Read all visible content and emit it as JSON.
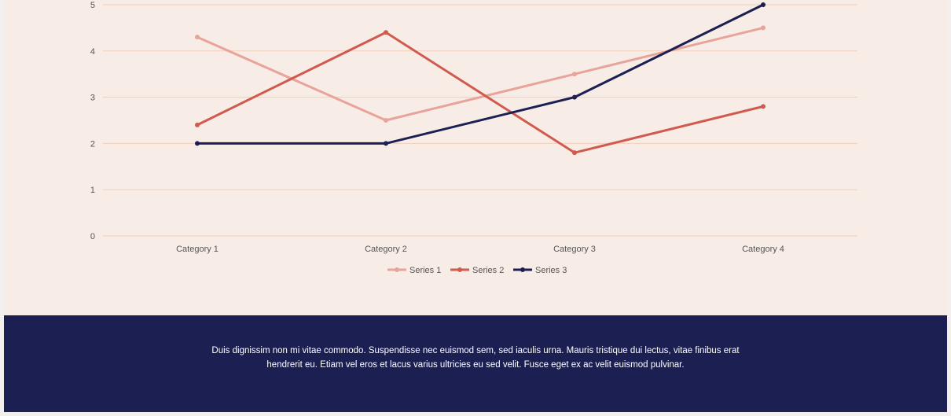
{
  "chart_data": {
    "type": "line",
    "categories": [
      "Category 1",
      "Category 2",
      "Category 3",
      "Category 4"
    ],
    "series": [
      {
        "name": "Series 1",
        "values": [
          4.3,
          2.5,
          3.5,
          4.5
        ],
        "color": "#e8a39a"
      },
      {
        "name": "Series 2",
        "values": [
          2.4,
          4.4,
          1.8,
          2.8
        ],
        "color": "#d05a4e"
      },
      {
        "name": "Series 3",
        "values": [
          2.0,
          2.0,
          3.0,
          5.0
        ],
        "color": "#1c1f52"
      }
    ],
    "yticks": [
      "0",
      "1",
      "2",
      "3",
      "4",
      "5"
    ],
    "ylim": [
      0,
      5
    ],
    "grid": true,
    "legend": "bottom",
    "gridColor": "#f3cfb8"
  },
  "footer": {
    "text": "Duis dignissim non mi vitae commodo. Suspendisse nec euismod sem, sed iaculis urna. Mauris tristique dui lectus, vitae finibus erat hendrerit eu. Etiam vel eros et lacus varius ultricies eu sed velit. Fusce eget ex ac velit euismod pulvinar.",
    "background": "#1c1f52"
  }
}
